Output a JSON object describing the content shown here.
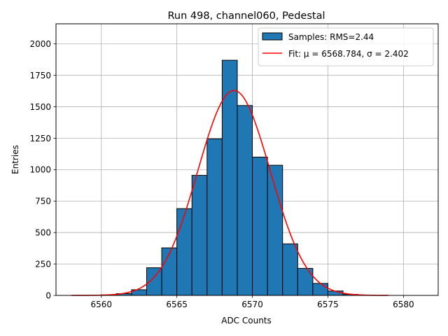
{
  "chart_data": {
    "type": "histogram",
    "title": "Run 498, channel060, Pedestal",
    "xlabel": "ADC Counts",
    "ylabel": "Entries",
    "xlim": [
      6557.0,
      6582.3
    ],
    "ylim": [
      0,
      2160
    ],
    "xticks": [
      6560,
      6565,
      6570,
      6575,
      6580
    ],
    "yticks": [
      0,
      250,
      500,
      750,
      1000,
      1250,
      1500,
      1750,
      2000
    ],
    "grid": true,
    "bin_edges": [
      6560,
      6561,
      6562,
      6563,
      6564,
      6565,
      6566,
      6567,
      6568,
      6569,
      6570,
      6571,
      6572,
      6573,
      6574,
      6575,
      6576,
      6577
    ],
    "counts": [
      4,
      14,
      45,
      220,
      378,
      690,
      955,
      1245,
      1870,
      1510,
      1100,
      1035,
      410,
      215,
      95,
      35,
      8
    ],
    "bar_color": "#1f77b4",
    "fit": {
      "mu": 6568.784,
      "sigma": 2.402,
      "amplitude": 1630,
      "x_range": [
        6558,
        6579
      ],
      "color": "#ff0000"
    },
    "legend": {
      "location": "top-right",
      "entries": [
        {
          "label": "Samples: RMS=2.44",
          "kind": "patch",
          "color": "#1f77b4"
        },
        {
          "label": "Fit: μ = 6568.784, σ = 2.402",
          "kind": "line",
          "color": "#ff0000"
        }
      ]
    }
  }
}
